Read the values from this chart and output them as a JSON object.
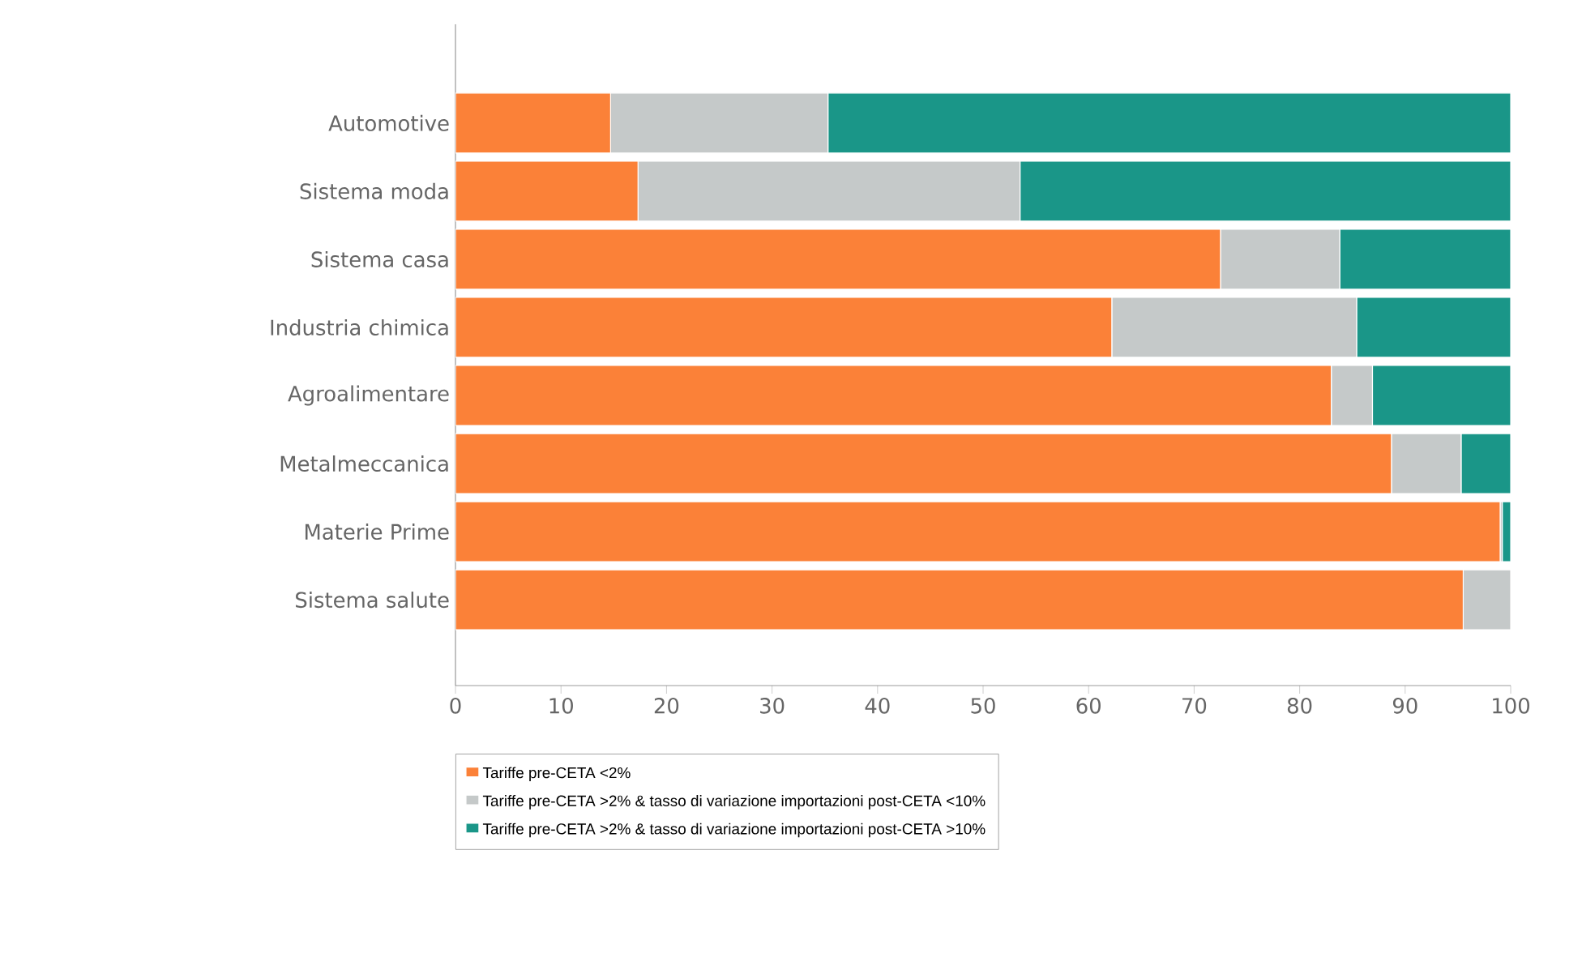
{
  "chart_data": {
    "type": "bar",
    "orientation": "horizontal",
    "stacked": true,
    "categories": [
      "Automotive",
      "Sistema moda",
      "Sistema casa",
      "Industria chimica",
      "Agroalimentare",
      "Metalmeccanica",
      "Materie Prime",
      "Sistema salute"
    ],
    "series": [
      {
        "name": "Tariffe pre-CETA <2%",
        "color": "#fb8138",
        "values": [
          14.7,
          17.3,
          72.5,
          62.2,
          83.0,
          88.7,
          99.0,
          95.5
        ]
      },
      {
        "name": "Tariffe pre-CETA >2% & tasso di variazione importazioni post-CETA <10%",
        "color": "#c5c9c9",
        "values": [
          20.6,
          36.2,
          11.3,
          23.2,
          3.9,
          6.6,
          0.2,
          4.5
        ]
      },
      {
        "name": "Tariffe pre-CETA >2% & tasso di variazione importazioni post-CETA >10%",
        "color": "#1a9688",
        "values": [
          64.7,
          46.5,
          16.2,
          14.6,
          13.1,
          4.7,
          0.8,
          0
        ]
      }
    ],
    "xlim": [
      0,
      100
    ],
    "xticks": [
      0,
      10,
      20,
      30,
      40,
      50,
      60,
      70,
      80,
      90,
      100
    ],
    "legend": "bottom"
  }
}
